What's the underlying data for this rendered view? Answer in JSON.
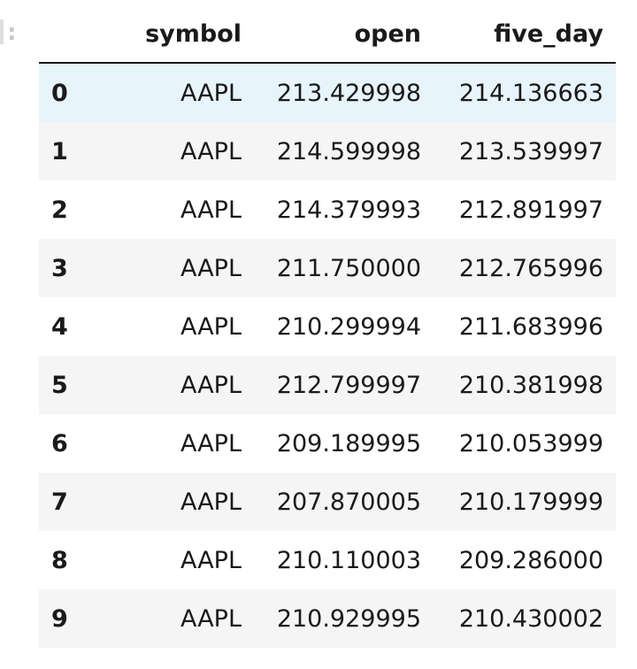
{
  "prompt_marker": ":",
  "table": {
    "columns": [
      "symbol",
      "open",
      "five_day"
    ],
    "rows": [
      {
        "index": "0",
        "symbol": "AAPL",
        "open": "213.429998",
        "five_day": "214.136663"
      },
      {
        "index": "1",
        "symbol": "AAPL",
        "open": "214.599998",
        "five_day": "213.539997"
      },
      {
        "index": "2",
        "symbol": "AAPL",
        "open": "214.379993",
        "five_day": "212.891997"
      },
      {
        "index": "3",
        "symbol": "AAPL",
        "open": "211.750000",
        "five_day": "212.765996"
      },
      {
        "index": "4",
        "symbol": "AAPL",
        "open": "210.299994",
        "five_day": "211.683996"
      },
      {
        "index": "5",
        "symbol": "AAPL",
        "open": "212.799997",
        "five_day": "210.381998"
      },
      {
        "index": "6",
        "symbol": "AAPL",
        "open": "209.189995",
        "five_day": "210.053999"
      },
      {
        "index": "7",
        "symbol": "AAPL",
        "open": "207.870005",
        "five_day": "210.179999"
      },
      {
        "index": "8",
        "symbol": "AAPL",
        "open": "210.110003",
        "five_day": "209.286000"
      },
      {
        "index": "9",
        "symbol": "AAPL",
        "open": "210.929995",
        "five_day": "210.430002"
      }
    ]
  },
  "colors": {
    "hover_row": "#e8f4fc",
    "stripe_row": "#f5f5f5"
  }
}
